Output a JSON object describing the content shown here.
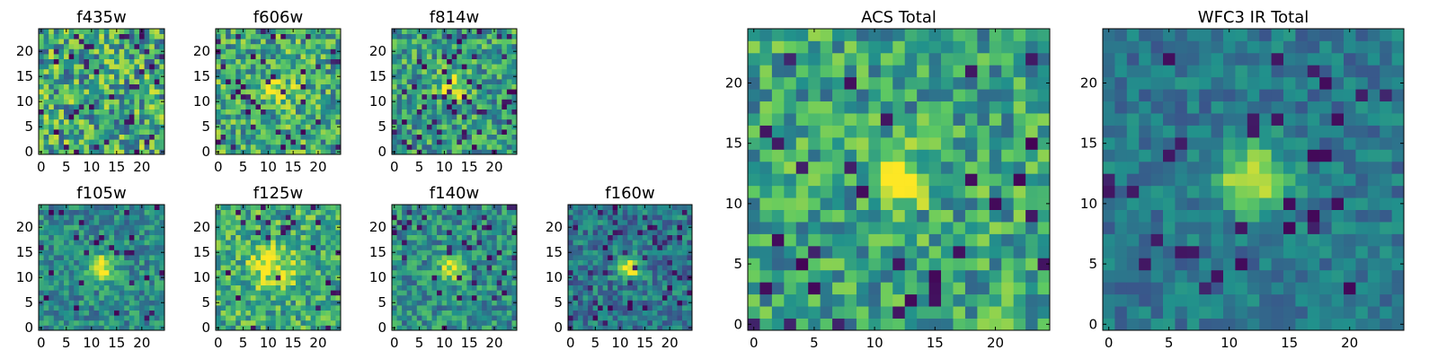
{
  "figure": {
    "panel_titles": [
      "f435w",
      "f606w",
      "f814w",
      "f105w",
      "f125w",
      "f140w",
      "f160w",
      "ACS Total",
      "WFC3 IR Total"
    ],
    "colormap": [
      "#440154",
      "#3b528b",
      "#21918c",
      "#5ec962",
      "#fde725"
    ],
    "background": "#ffffff"
  },
  "chart_data": [
    {
      "type": "heatmap",
      "title": "f435w",
      "xlim": [
        0,
        24
      ],
      "ylim": [
        0,
        24
      ],
      "xticks": [
        0,
        5,
        10,
        15,
        20
      ],
      "yticks": [
        0,
        5,
        10,
        15,
        20
      ],
      "grid": false,
      "shape": [
        25,
        25
      ],
      "peak": [
        11,
        12
      ],
      "values": []
    },
    {
      "type": "heatmap",
      "title": "f606w",
      "xlim": [
        0,
        24
      ],
      "ylim": [
        0,
        24
      ],
      "xticks": [
        0,
        5,
        10,
        15,
        20
      ],
      "yticks": [
        0,
        5,
        10,
        15,
        20
      ],
      "grid": false,
      "shape": [
        25,
        25
      ],
      "peak": [
        12,
        12
      ],
      "values": []
    },
    {
      "type": "heatmap",
      "title": "f814w",
      "xlim": [
        0,
        24
      ],
      "ylim": [
        0,
        24
      ],
      "xticks": [
        0,
        5,
        10,
        15,
        20
      ],
      "yticks": [
        0,
        5,
        10,
        15,
        20
      ],
      "grid": false,
      "shape": [
        25,
        25
      ],
      "peak": [
        12,
        13
      ],
      "values": []
    },
    {
      "type": "heatmap",
      "title": "f105w",
      "xlim": [
        0,
        24
      ],
      "ylim": [
        0,
        24
      ],
      "xticks": [
        0,
        5,
        10,
        15,
        20
      ],
      "yticks": [
        0,
        5,
        10,
        15,
        20
      ],
      "grid": false,
      "shape": [
        25,
        25
      ],
      "peak": [
        12,
        12
      ],
      "values": []
    },
    {
      "type": "heatmap",
      "title": "f125w",
      "xlim": [
        0,
        24
      ],
      "ylim": [
        0,
        24
      ],
      "xticks": [
        0,
        5,
        10,
        15,
        20
      ],
      "yticks": [
        0,
        5,
        10,
        15,
        20
      ],
      "grid": false,
      "shape": [
        25,
        25
      ],
      "peak": [
        11,
        12
      ],
      "values": []
    },
    {
      "type": "heatmap",
      "title": "f140w",
      "xlim": [
        0,
        24
      ],
      "ylim": [
        0,
        24
      ],
      "xticks": [
        0,
        5,
        10,
        15,
        20
      ],
      "yticks": [
        0,
        5,
        10,
        15,
        20
      ],
      "grid": false,
      "shape": [
        25,
        25
      ],
      "peak": [
        12,
        12
      ],
      "values": []
    },
    {
      "type": "heatmap",
      "title": "f160w",
      "xlim": [
        0,
        24
      ],
      "ylim": [
        0,
        24
      ],
      "xticks": [
        0,
        5,
        10,
        15,
        20
      ],
      "yticks": [
        0,
        5,
        10,
        15,
        20
      ],
      "grid": false,
      "shape": [
        25,
        25
      ],
      "peak": [
        12,
        12
      ],
      "values": []
    },
    {
      "type": "heatmap",
      "title": "ACS Total",
      "xlim": [
        0,
        24
      ],
      "ylim": [
        0,
        24
      ],
      "xticks": [
        0,
        5,
        10,
        15,
        20
      ],
      "yticks": [
        0,
        5,
        10,
        15,
        20
      ],
      "grid": false,
      "shape": [
        25,
        25
      ],
      "peak": [
        12,
        12
      ],
      "values": []
    },
    {
      "type": "heatmap",
      "title": "WFC3 IR Total",
      "xlim": [
        0,
        24
      ],
      "ylim": [
        0,
        24
      ],
      "xticks": [
        0,
        5,
        10,
        15,
        20
      ],
      "yticks": [
        0,
        5,
        10,
        15,
        20
      ],
      "grid": false,
      "shape": [
        25,
        25
      ],
      "peak": [
        12,
        12
      ],
      "values": []
    }
  ]
}
